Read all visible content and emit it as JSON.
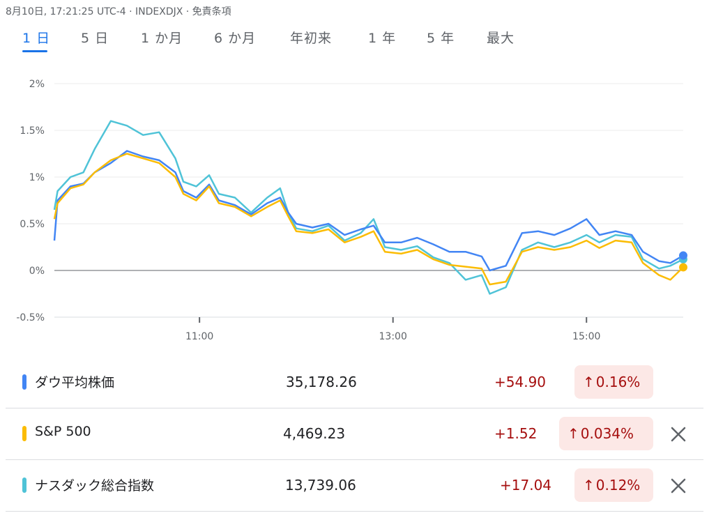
{
  "header": {
    "meta": "8月10日, 17:21:25 UTC-4 · INDEXDJX · 免責条項"
  },
  "tabs": [
    {
      "label": "1 日",
      "active": true
    },
    {
      "label": "5 日",
      "active": false
    },
    {
      "label": "1 か月",
      "active": false
    },
    {
      "label": "6 か月",
      "active": false
    },
    {
      "label": "年初来",
      "active": false
    },
    {
      "label": "1 年",
      "active": false
    },
    {
      "label": "5 年",
      "active": false
    },
    {
      "label": "最大",
      "active": false
    }
  ],
  "chart_data": {
    "type": "line",
    "x_range": [
      "09:30",
      "16:00"
    ],
    "ylim": [
      -0.5,
      2
    ],
    "y_ticks": [
      "2%",
      "1.5%",
      "1%",
      "0.5%",
      "0%",
      "-0.5%"
    ],
    "y_tick_values": [
      2,
      1.5,
      1,
      0.5,
      0,
      -0.5
    ],
    "x_ticks": [
      "11:00",
      "13:00",
      "15:00"
    ],
    "x_tick_values": [
      "11:00",
      "13:00",
      "15:00"
    ],
    "baseline": 0,
    "series": [
      {
        "name": "ダウ平均株価",
        "color": "#4285f4",
        "points": [
          [
            "09:30",
            0.32
          ],
          [
            "09:32",
            0.75
          ],
          [
            "09:40",
            0.9
          ],
          [
            "09:48",
            0.93
          ],
          [
            "09:55",
            1.05
          ],
          [
            "10:05",
            1.15
          ],
          [
            "10:15",
            1.28
          ],
          [
            "10:25",
            1.22
          ],
          [
            "10:35",
            1.18
          ],
          [
            "10:45",
            1.05
          ],
          [
            "10:50",
            0.85
          ],
          [
            "10:58",
            0.78
          ],
          [
            "11:06",
            0.92
          ],
          [
            "11:12",
            0.75
          ],
          [
            "11:22",
            0.7
          ],
          [
            "11:32",
            0.6
          ],
          [
            "11:42",
            0.72
          ],
          [
            "11:50",
            0.78
          ],
          [
            "11:55",
            0.62
          ],
          [
            "12:00",
            0.5
          ],
          [
            "12:10",
            0.46
          ],
          [
            "12:20",
            0.5
          ],
          [
            "12:30",
            0.38
          ],
          [
            "12:40",
            0.44
          ],
          [
            "12:48",
            0.48
          ],
          [
            "12:55",
            0.3
          ],
          [
            "13:05",
            0.3
          ],
          [
            "13:15",
            0.35
          ],
          [
            "13:25",
            0.28
          ],
          [
            "13:35",
            0.2
          ],
          [
            "13:45",
            0.2
          ],
          [
            "13:55",
            0.15
          ],
          [
            "14:00",
            0.0
          ],
          [
            "14:10",
            0.05
          ],
          [
            "14:20",
            0.4
          ],
          [
            "14:30",
            0.42
          ],
          [
            "14:40",
            0.38
          ],
          [
            "14:50",
            0.45
          ],
          [
            "15:00",
            0.55
          ],
          [
            "15:08",
            0.38
          ],
          [
            "15:18",
            0.42
          ],
          [
            "15:28",
            0.38
          ],
          [
            "15:35",
            0.2
          ],
          [
            "15:45",
            0.1
          ],
          [
            "15:52",
            0.08
          ],
          [
            "16:00",
            0.16
          ]
        ]
      },
      {
        "name": "S&P 500",
        "color": "#fbbc04",
        "points": [
          [
            "09:30",
            0.55
          ],
          [
            "09:32",
            0.72
          ],
          [
            "09:40",
            0.88
          ],
          [
            "09:48",
            0.92
          ],
          [
            "09:55",
            1.05
          ],
          [
            "10:05",
            1.18
          ],
          [
            "10:15",
            1.25
          ],
          [
            "10:25",
            1.2
          ],
          [
            "10:35",
            1.15
          ],
          [
            "10:45",
            1.0
          ],
          [
            "10:50",
            0.82
          ],
          [
            "10:58",
            0.75
          ],
          [
            "11:06",
            0.9
          ],
          [
            "11:12",
            0.72
          ],
          [
            "11:22",
            0.68
          ],
          [
            "11:32",
            0.58
          ],
          [
            "11:42",
            0.68
          ],
          [
            "11:50",
            0.75
          ],
          [
            "11:55",
            0.58
          ],
          [
            "12:00",
            0.42
          ],
          [
            "12:10",
            0.4
          ],
          [
            "12:20",
            0.44
          ],
          [
            "12:30",
            0.3
          ],
          [
            "12:40",
            0.36
          ],
          [
            "12:48",
            0.42
          ],
          [
            "12:55",
            0.2
          ],
          [
            "13:05",
            0.18
          ],
          [
            "13:15",
            0.22
          ],
          [
            "13:25",
            0.12
          ],
          [
            "13:35",
            0.06
          ],
          [
            "13:45",
            0.04
          ],
          [
            "13:55",
            0.02
          ],
          [
            "14:00",
            -0.15
          ],
          [
            "14:10",
            -0.12
          ],
          [
            "14:20",
            0.2
          ],
          [
            "14:30",
            0.25
          ],
          [
            "14:40",
            0.22
          ],
          [
            "14:50",
            0.25
          ],
          [
            "15:00",
            0.32
          ],
          [
            "15:08",
            0.24
          ],
          [
            "15:18",
            0.32
          ],
          [
            "15:28",
            0.3
          ],
          [
            "15:35",
            0.08
          ],
          [
            "15:45",
            -0.05
          ],
          [
            "15:52",
            -0.1
          ],
          [
            "16:00",
            0.034
          ]
        ]
      },
      {
        "name": "ナスダック総合指数",
        "color": "#4fc3d7",
        "points": [
          [
            "09:30",
            0.65
          ],
          [
            "09:32",
            0.85
          ],
          [
            "09:40",
            1.0
          ],
          [
            "09:48",
            1.05
          ],
          [
            "09:55",
            1.3
          ],
          [
            "10:05",
            1.6
          ],
          [
            "10:15",
            1.55
          ],
          [
            "10:25",
            1.45
          ],
          [
            "10:35",
            1.48
          ],
          [
            "10:45",
            1.2
          ],
          [
            "10:50",
            0.95
          ],
          [
            "10:58",
            0.9
          ],
          [
            "11:06",
            1.02
          ],
          [
            "11:12",
            0.82
          ],
          [
            "11:22",
            0.78
          ],
          [
            "11:32",
            0.62
          ],
          [
            "11:42",
            0.78
          ],
          [
            "11:50",
            0.88
          ],
          [
            "11:55",
            0.62
          ],
          [
            "12:00",
            0.45
          ],
          [
            "12:10",
            0.42
          ],
          [
            "12:20",
            0.48
          ],
          [
            "12:30",
            0.32
          ],
          [
            "12:40",
            0.4
          ],
          [
            "12:48",
            0.55
          ],
          [
            "12:55",
            0.25
          ],
          [
            "13:05",
            0.22
          ],
          [
            "13:15",
            0.26
          ],
          [
            "13:25",
            0.14
          ],
          [
            "13:35",
            0.08
          ],
          [
            "13:45",
            -0.1
          ],
          [
            "13:55",
            -0.05
          ],
          [
            "14:00",
            -0.25
          ],
          [
            "14:10",
            -0.18
          ],
          [
            "14:20",
            0.22
          ],
          [
            "14:30",
            0.3
          ],
          [
            "14:40",
            0.25
          ],
          [
            "14:50",
            0.3
          ],
          [
            "15:00",
            0.38
          ],
          [
            "15:08",
            0.3
          ],
          [
            "15:18",
            0.38
          ],
          [
            "15:28",
            0.36
          ],
          [
            "15:35",
            0.12
          ],
          [
            "15:45",
            0.02
          ],
          [
            "15:52",
            0.05
          ],
          [
            "16:00",
            0.12
          ]
        ]
      }
    ]
  },
  "legend": [
    {
      "name": "ダウ平均株価",
      "color": "#4285f4",
      "price": "35,178.26",
      "change": "+54.90",
      "pct": "0.16%",
      "removable": false
    },
    {
      "name": "S&P 500",
      "color": "#fbbc04",
      "price": "4,469.23",
      "change": "+1.52",
      "pct": "0.034%",
      "removable": true
    },
    {
      "name": "ナスダック総合指数",
      "color": "#4fc3d7",
      "price": "13,739.06",
      "change": "+17.04",
      "pct": "0.12%",
      "removable": true
    }
  ],
  "icons": {
    "up_arrow": "arrow-up-icon",
    "remove": "close-icon"
  },
  "colors": {
    "accent": "#1a73e8",
    "positive_text": "#a50e0e",
    "positive_bg": "#fce8e6"
  }
}
